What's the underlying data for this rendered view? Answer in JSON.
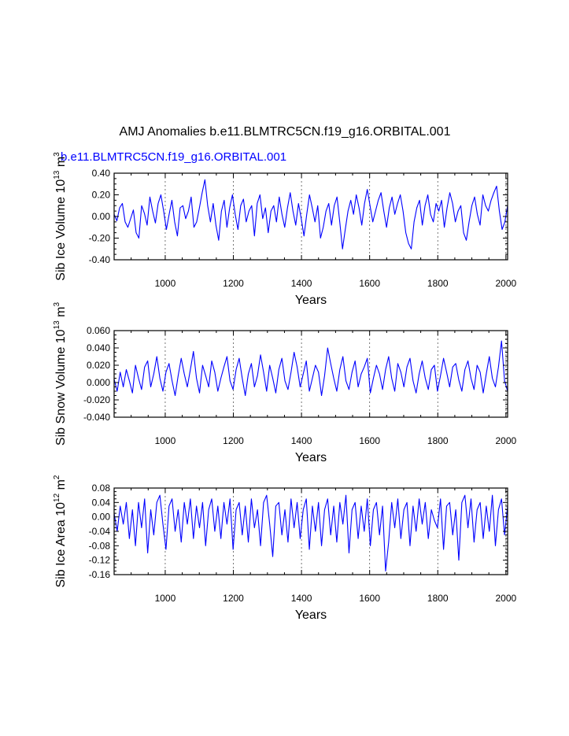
{
  "title": "AMJ Anomalies b.e11.BLMTRC5CN.f19_g16.ORBITAL.001",
  "subtitle": "b.e11.BLMTRC5CN.f19_g16.ORBITAL.001",
  "series_color": "#0000ff",
  "chart_data": [
    {
      "type": "line",
      "title": "",
      "xlabel": "Years",
      "ylabel": {
        "main": "Sib Ice Volume 10",
        "exp": "13",
        "unit": " m",
        "unit_exp": "3"
      },
      "xlim": [
        850,
        2005
      ],
      "ylim": [
        -0.4,
        0.4
      ],
      "xticks": [
        1000,
        1200,
        1400,
        1600,
        1800,
        2000
      ],
      "yticks": [
        -0.4,
        -0.2,
        0.0,
        0.2,
        0.4
      ],
      "ytick_labels": [
        "-0.40",
        "-0.20",
        "0.00",
        "0.20",
        "0.40"
      ],
      "x_start": 850,
      "x_end": 2005,
      "series": [
        {
          "name": "b.e11.BLMTRC5CN.f19_g16.ORBITAL.001",
          "values": [
            0.02,
            -0.04,
            0.08,
            0.12,
            -0.05,
            -0.1,
            -0.02,
            0.06,
            -0.15,
            -0.2,
            0.1,
            0.03,
            -0.08,
            0.18,
            0.05,
            -0.06,
            0.12,
            0.2,
            0.05,
            -0.12,
            0.02,
            0.15,
            -0.05,
            -0.18,
            0.08,
            0.1,
            -0.02,
            0.05,
            0.18,
            -0.1,
            -0.05,
            0.08,
            0.22,
            0.34,
            0.1,
            -0.05,
            0.12,
            -0.08,
            -0.22,
            0.05,
            0.15,
            -0.1,
            0.08,
            0.2,
            0.02,
            -0.12,
            0.1,
            0.16,
            -0.05,
            0.05,
            0.1,
            -0.18,
            0.12,
            0.2,
            -0.02,
            0.08,
            -0.15,
            0.05,
            0.1,
            -0.05,
            0.18,
            0.02,
            -0.1,
            0.08,
            0.22,
            0.05,
            -0.08,
            0.12,
            -0.02,
            -0.18,
            0.02,
            0.2,
            0.08,
            -0.05,
            0.1,
            -0.2,
            -0.1,
            0.05,
            0.12,
            -0.08,
            0.1,
            0.18,
            -0.05,
            -0.3,
            -0.12,
            0.05,
            0.15,
            0.02,
            0.2,
            0.08,
            -0.08,
            0.12,
            0.25,
            0.1,
            -0.05,
            0.05,
            0.15,
            0.22,
            0.05,
            -0.1,
            0.08,
            0.18,
            0.02,
            0.12,
            0.2,
            0.05,
            -0.15,
            -0.25,
            -0.3,
            -0.05,
            0.08,
            0.15,
            -0.08,
            0.1,
            0.2,
            0.02,
            -0.05,
            0.12,
            0.05,
            0.15,
            -0.1,
            0.08,
            0.22,
            0.12,
            -0.05,
            0.05,
            0.1,
            -0.15,
            -0.22,
            -0.05,
            0.1,
            0.18,
            0.02,
            -0.08,
            0.2,
            0.1,
            0.05,
            0.15,
            0.22,
            0.28,
            0.05,
            -0.12,
            -0.05,
            0.1
          ]
        }
      ]
    },
    {
      "type": "line",
      "title": "",
      "xlabel": "Years",
      "ylabel": {
        "main": "Sib Snow Volume 10",
        "exp": "13",
        "unit": " m",
        "unit_exp": "3"
      },
      "xlim": [
        850,
        2005
      ],
      "ylim": [
        -0.04,
        0.06
      ],
      "xticks": [
        1000,
        1200,
        1400,
        1600,
        1800,
        2000
      ],
      "yticks": [
        -0.04,
        -0.02,
        0.0,
        0.02,
        0.04,
        0.06
      ],
      "ytick_labels": [
        "-0.040",
        "-0.020",
        "0.000",
        "0.020",
        "0.040",
        "0.060"
      ],
      "x_start": 850,
      "x_end": 2005,
      "series": [
        {
          "name": "b.e11.BLMTRC5CN.f19_g16.ORBITAL.001",
          "values": [
            0.004,
            -0.01,
            0.012,
            -0.005,
            0.015,
            0.002,
            -0.012,
            0.02,
            0.005,
            -0.008,
            0.018,
            0.025,
            -0.005,
            0.01,
            0.03,
            0.005,
            -0.01,
            0.012,
            0.022,
            0.002,
            -0.015,
            0.008,
            0.028,
            0.01,
            -0.005,
            0.015,
            0.036,
            0.005,
            -0.012,
            0.02,
            0.008,
            -0.005,
            0.025,
            0.012,
            -0.01,
            0.005,
            0.018,
            0.03,
            0.002,
            -0.008,
            0.015,
            0.028,
            0.005,
            -0.015,
            0.01,
            0.022,
            -0.005,
            0.008,
            0.032,
            0.012,
            -0.01,
            0.02,
            0.005,
            -0.012,
            0.015,
            0.028,
            0.002,
            -0.008,
            0.012,
            0.035,
            0.018,
            -0.005,
            0.01,
            0.025,
            -0.01,
            0.005,
            0.02,
            0.012,
            -0.015,
            0.008,
            0.04,
            0.022,
            0.005,
            -0.01,
            0.015,
            0.03,
            0.002,
            -0.008,
            0.012,
            0.025,
            -0.005,
            0.01,
            0.018,
            0.028,
            -0.012,
            0.005,
            0.02,
            0.01,
            -0.008,
            0.015,
            0.03,
            0.005,
            -0.01,
            0.022,
            0.012,
            -0.005,
            0.018,
            0.028,
            0.002,
            -0.012,
            0.01,
            0.025,
            0.005,
            -0.008,
            0.015,
            0.02,
            -0.01,
            0.008,
            0.028,
            0.012,
            -0.005,
            0.018,
            0.022,
            0.003,
            -0.01,
            0.015,
            0.025,
            0.005,
            -0.008,
            0.02,
            0.012,
            -0.012,
            0.01,
            0.03,
            0.005,
            -0.005,
            0.018,
            0.048,
            0.002,
            -0.01
          ]
        }
      ]
    },
    {
      "type": "line",
      "title": "",
      "xlabel": "Years",
      "ylabel": {
        "main": "Sib Ice Area 10",
        "exp": "12",
        "unit": " m",
        "unit_exp": "2"
      },
      "xlim": [
        850,
        2005
      ],
      "ylim": [
        -0.16,
        0.08
      ],
      "xticks": [
        1000,
        1200,
        1400,
        1600,
        1800,
        2000
      ],
      "yticks": [
        -0.16,
        -0.12,
        -0.08,
        -0.04,
        0.0,
        0.04,
        0.08
      ],
      "ytick_labels": [
        "-0.16",
        "-0.12",
        "-0.08",
        "-0.04",
        "0.00",
        "0.04",
        "0.08"
      ],
      "x_start": 850,
      "x_end": 2005,
      "series": [
        {
          "name": "b.e11.BLMTRC5CN.f19_g16.ORBITAL.001",
          "values": [
            0.01,
            -0.04,
            0.03,
            -0.02,
            0.04,
            -0.06,
            0.02,
            -0.08,
            0.04,
            -0.03,
            0.05,
            -0.1,
            0.02,
            -0.05,
            0.04,
            0.06,
            -0.02,
            -0.09,
            0.03,
            0.05,
            -0.04,
            0.02,
            -0.07,
            0.04,
            -0.02,
            0.05,
            -0.06,
            0.03,
            -0.03,
            0.04,
            -0.08,
            0.02,
            0.05,
            -0.04,
            0.03,
            -0.06,
            0.04,
            -0.02,
            0.05,
            -0.09,
            0.02,
            0.04,
            -0.05,
            0.03,
            -0.07,
            0.05,
            -0.03,
            0.02,
            -0.08,
            0.04,
            0.06,
            -0.02,
            -0.11,
            0.03,
            0.04,
            -0.05,
            0.02,
            -0.07,
            0.05,
            -0.03,
            0.04,
            -0.06,
            0.02,
            0.05,
            -0.09,
            0.03,
            -0.04,
            0.04,
            -0.08,
            0.02,
            0.05,
            -0.05,
            0.03,
            -0.07,
            0.04,
            -0.02,
            0.06,
            -0.1,
            0.02,
            0.04,
            -0.06,
            0.03,
            -0.04,
            0.05,
            -0.08,
            0.02,
            0.04,
            -0.05,
            0.03,
            -0.15,
            -0.07,
            0.04,
            -0.03,
            0.05,
            -0.06,
            0.02,
            0.04,
            -0.08,
            0.03,
            -0.04,
            0.05,
            -0.02,
            0.04,
            -0.06,
            0.02,
            -0.01,
            -0.03,
            0.05,
            -0.09,
            0.03,
            0.04,
            -0.05,
            0.02,
            -0.12,
            0.04,
            0.06,
            -0.03,
            0.05,
            -0.07,
            0.02,
            0.04,
            -0.06,
            0.03,
            -0.04,
            0.06,
            -0.08,
            0.02,
            0.05,
            -0.05,
            0.03
          ]
        }
      ]
    }
  ]
}
